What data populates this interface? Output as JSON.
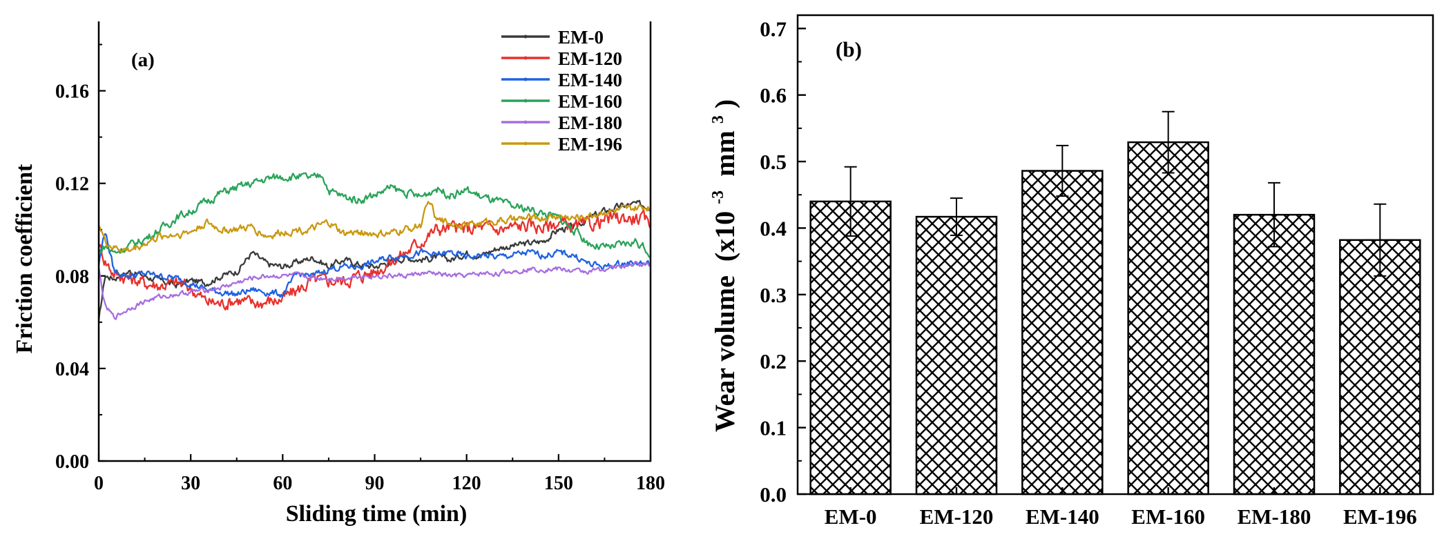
{
  "chart_data": [
    {
      "type": "line",
      "panel_label": "(a)",
      "xlabel": "Sliding time (min)",
      "ylabel": "Friction coefficient",
      "xlim": [
        0,
        180
      ],
      "ylim": [
        0,
        0.19
      ],
      "xticks": [
        "0",
        "30",
        "60",
        "90",
        "120",
        "150",
        "180"
      ],
      "yticks": [
        "0.00",
        "0.04",
        "0.08",
        "0.12",
        "0.16"
      ],
      "legend_position": "top-right",
      "series": [
        {
          "name": "EM-0",
          "color": "#3a3a3a",
          "x": [
            0,
            2,
            5,
            10,
            15,
            20,
            25,
            30,
            35,
            40,
            45,
            50,
            55,
            60,
            65,
            70,
            75,
            80,
            85,
            90,
            95,
            100,
            105,
            110,
            115,
            120,
            125,
            130,
            135,
            140,
            145,
            150,
            155,
            160,
            165,
            170,
            175,
            180
          ],
          "y": [
            0.06,
            0.08,
            0.079,
            0.082,
            0.08,
            0.078,
            0.076,
            0.078,
            0.077,
            0.08,
            0.082,
            0.09,
            0.085,
            0.084,
            0.086,
            0.088,
            0.084,
            0.087,
            0.085,
            0.084,
            0.086,
            0.088,
            0.087,
            0.088,
            0.087,
            0.09,
            0.089,
            0.092,
            0.093,
            0.094,
            0.095,
            0.1,
            0.101,
            0.105,
            0.108,
            0.11,
            0.111,
            0.11
          ],
          "noise": 0.0012
        },
        {
          "name": "EM-120",
          "color": "#e8312d",
          "x": [
            0,
            2,
            5,
            10,
            15,
            20,
            25,
            30,
            35,
            40,
            45,
            50,
            55,
            60,
            65,
            70,
            75,
            80,
            85,
            90,
            95,
            100,
            105,
            110,
            115,
            120,
            125,
            130,
            135,
            140,
            145,
            150,
            155,
            160,
            165,
            170,
            175,
            180
          ],
          "y": [
            0.094,
            0.087,
            0.081,
            0.079,
            0.077,
            0.076,
            0.077,
            0.075,
            0.069,
            0.068,
            0.07,
            0.068,
            0.069,
            0.07,
            0.074,
            0.078,
            0.078,
            0.078,
            0.08,
            0.082,
            0.086,
            0.09,
            0.095,
            0.1,
            0.101,
            0.1,
            0.101,
            0.1,
            0.101,
            0.102,
            0.101,
            0.103,
            0.101,
            0.102,
            0.104,
            0.105,
            0.105,
            0.103
          ],
          "noise": 0.0025
        },
        {
          "name": "EM-140",
          "color": "#1f62e0",
          "x": [
            0,
            2,
            5,
            10,
            15,
            20,
            25,
            30,
            35,
            40,
            45,
            50,
            55,
            60,
            65,
            70,
            75,
            80,
            85,
            90,
            95,
            100,
            105,
            110,
            115,
            120,
            125,
            130,
            135,
            140,
            145,
            150,
            155,
            160,
            165,
            170,
            175,
            180
          ],
          "y": [
            0.085,
            0.1,
            0.082,
            0.08,
            0.081,
            0.08,
            0.079,
            0.077,
            0.074,
            0.073,
            0.072,
            0.074,
            0.073,
            0.072,
            0.081,
            0.08,
            0.083,
            0.084,
            0.084,
            0.086,
            0.088,
            0.089,
            0.09,
            0.089,
            0.09,
            0.088,
            0.089,
            0.088,
            0.089,
            0.09,
            0.089,
            0.09,
            0.089,
            0.085,
            0.084,
            0.085,
            0.086,
            0.085
          ],
          "noise": 0.0012
        },
        {
          "name": "EM-160",
          "color": "#2aa35a",
          "x": [
            0,
            2,
            5,
            10,
            15,
            20,
            25,
            30,
            35,
            40,
            45,
            50,
            55,
            60,
            65,
            70,
            73,
            75,
            80,
            85,
            90,
            95,
            100,
            105,
            110,
            115,
            120,
            125,
            130,
            135,
            140,
            145,
            150,
            155,
            160,
            165,
            170,
            175,
            180
          ],
          "y": [
            0.09,
            0.093,
            0.09,
            0.093,
            0.096,
            0.1,
            0.105,
            0.108,
            0.112,
            0.116,
            0.118,
            0.12,
            0.122,
            0.123,
            0.123,
            0.122,
            0.124,
            0.117,
            0.114,
            0.113,
            0.115,
            0.118,
            0.116,
            0.114,
            0.118,
            0.115,
            0.117,
            0.114,
            0.112,
            0.11,
            0.109,
            0.107,
            0.105,
            0.1,
            0.094,
            0.092,
            0.093,
            0.095,
            0.09
          ],
          "noise": 0.0015
        },
        {
          "name": "EM-180",
          "color": "#a66ee0",
          "x": [
            0,
            2,
            5,
            10,
            15,
            20,
            25,
            30,
            35,
            40,
            45,
            50,
            55,
            60,
            65,
            70,
            75,
            80,
            85,
            90,
            95,
            100,
            105,
            110,
            115,
            120,
            125,
            130,
            135,
            140,
            145,
            150,
            155,
            160,
            165,
            170,
            175,
            180
          ],
          "y": [
            0.083,
            0.067,
            0.062,
            0.066,
            0.069,
            0.071,
            0.072,
            0.073,
            0.074,
            0.075,
            0.077,
            0.079,
            0.08,
            0.08,
            0.08,
            0.079,
            0.079,
            0.079,
            0.08,
            0.08,
            0.08,
            0.08,
            0.081,
            0.081,
            0.08,
            0.08,
            0.081,
            0.081,
            0.082,
            0.083,
            0.083,
            0.083,
            0.082,
            0.082,
            0.083,
            0.084,
            0.085,
            0.085
          ],
          "noise": 0.0009
        },
        {
          "name": "EM-196",
          "color": "#c9980f",
          "x": [
            0,
            2,
            5,
            10,
            15,
            20,
            25,
            30,
            35,
            40,
            45,
            50,
            55,
            60,
            65,
            70,
            75,
            80,
            85,
            90,
            95,
            100,
            105,
            108,
            110,
            115,
            120,
            125,
            130,
            135,
            140,
            145,
            150,
            155,
            160,
            165,
            170,
            175,
            180
          ],
          "y": [
            0.103,
            0.095,
            0.092,
            0.091,
            0.094,
            0.097,
            0.098,
            0.099,
            0.103,
            0.1,
            0.1,
            0.101,
            0.097,
            0.099,
            0.1,
            0.1,
            0.103,
            0.098,
            0.099,
            0.098,
            0.098,
            0.1,
            0.102,
            0.113,
            0.104,
            0.103,
            0.102,
            0.103,
            0.104,
            0.104,
            0.105,
            0.105,
            0.106,
            0.105,
            0.106,
            0.108,
            0.108,
            0.109,
            0.11
          ],
          "noise": 0.0014
        }
      ]
    },
    {
      "type": "bar",
      "panel_label": "(b)",
      "pattern": "cross-hatch",
      "xlabel": "",
      "ylabel_main": "Wear volume",
      "ylabel_unit_open": "(x10",
      "ylabel_unit_sup": "-3",
      "ylabel_unit_mid": "mm",
      "ylabel_unit_sup2": "3",
      "ylabel_unit_close": ")",
      "ylim": [
        0,
        0.72
      ],
      "yticks": [
        "0.0",
        "0.1",
        "0.2",
        "0.3",
        "0.4",
        "0.5",
        "0.6",
        "0.7"
      ],
      "categories": [
        "EM-0",
        "EM-120",
        "EM-140",
        "EM-160",
        "EM-180",
        "EM-196"
      ],
      "values": [
        0.44,
        0.417,
        0.486,
        0.529,
        0.42,
        0.382
      ],
      "errors": [
        0.052,
        0.028,
        0.038,
        0.046,
        0.048,
        0.054
      ]
    }
  ]
}
